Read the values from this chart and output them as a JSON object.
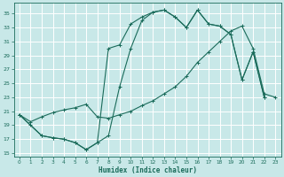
{
  "xlabel": "Humidex (Indice chaleur)",
  "bg_color": "#c8e8e8",
  "grid_color": "#ffffff",
  "line_color": "#1a6b5a",
  "xlim": [
    -0.5,
    23.5
  ],
  "ylim": [
    14.5,
    36.5
  ],
  "yticks": [
    15,
    17,
    19,
    21,
    23,
    25,
    27,
    29,
    31,
    33,
    35
  ],
  "xticks": [
    0,
    1,
    2,
    3,
    4,
    5,
    6,
    7,
    8,
    9,
    10,
    11,
    12,
    13,
    14,
    15,
    16,
    17,
    18,
    19,
    20,
    21,
    22,
    23
  ],
  "line1_x": [
    0,
    1,
    2,
    3,
    4,
    5,
    6,
    7,
    8,
    9,
    10,
    11,
    12,
    13,
    14,
    15,
    16,
    17,
    18,
    19,
    20,
    21,
    22
  ],
  "line1_y": [
    20.5,
    19,
    17.5,
    17.2,
    17.0,
    16.5,
    15.5,
    16.5,
    30.0,
    30.5,
    33.5,
    34.5,
    35.2,
    35.5,
    34.5,
    33.0,
    35.5,
    33.5,
    33.2,
    32.0,
    25.5,
    29.5,
    23.0
  ],
  "line2_x": [
    0,
    2,
    3,
    4,
    5,
    6,
    7,
    8,
    9,
    10,
    11,
    12,
    13,
    14,
    15,
    16,
    17,
    18,
    19,
    20,
    21,
    22
  ],
  "line2_y": [
    20.5,
    17.5,
    17.2,
    17.0,
    16.5,
    15.5,
    16.5,
    17.5,
    24.5,
    30.0,
    34.0,
    35.2,
    35.5,
    34.5,
    33.0,
    35.5,
    33.5,
    33.2,
    32.0,
    25.5,
    29.5,
    23.0
  ],
  "line3_x": [
    0,
    1,
    2,
    3,
    4,
    5,
    6,
    7,
    8,
    9,
    10,
    11,
    12,
    13,
    14,
    15,
    16,
    17,
    18,
    19,
    20,
    21,
    22,
    23
  ],
  "line3_y": [
    20.5,
    19.5,
    20.2,
    20.8,
    21.2,
    21.5,
    22.0,
    20.2,
    20.0,
    20.5,
    21.0,
    21.8,
    22.5,
    23.5,
    24.5,
    26.0,
    28.0,
    29.5,
    31.0,
    32.5,
    33.2,
    30.0,
    23.5,
    23.0
  ]
}
